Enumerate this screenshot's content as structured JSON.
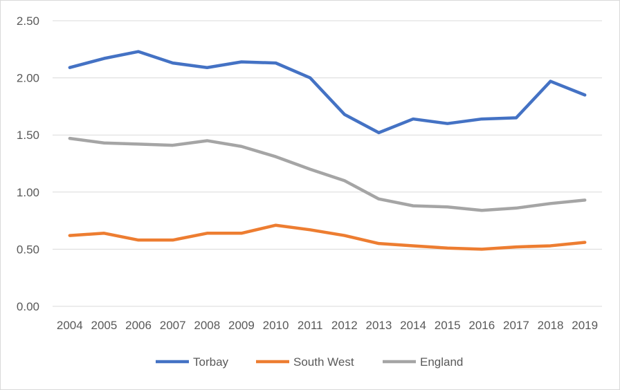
{
  "chart_data": {
    "type": "line",
    "title": "",
    "xlabel": "",
    "ylabel": "",
    "x": [
      "2004",
      "2005",
      "2006",
      "2007",
      "2008",
      "2009",
      "2010",
      "2011",
      "2012",
      "2013",
      "2014",
      "2015",
      "2016",
      "2017",
      "2018",
      "2019"
    ],
    "ylim": [
      0,
      2.5
    ],
    "yticks": [
      "0.00",
      "0.50",
      "1.00",
      "1.50",
      "2.00",
      "2.50"
    ],
    "grid": true,
    "legend": "bottom",
    "series": [
      {
        "name": "Torbay",
        "color": "#4472C4",
        "values": [
          2.09,
          2.17,
          2.23,
          2.13,
          2.09,
          2.14,
          2.13,
          2.0,
          1.68,
          1.52,
          1.64,
          1.6,
          1.64,
          1.65,
          1.97,
          1.85
        ]
      },
      {
        "name": "South West",
        "color": "#ED7D31",
        "values": [
          0.62,
          0.64,
          0.58,
          0.58,
          0.64,
          0.64,
          0.71,
          0.67,
          0.62,
          0.55,
          0.53,
          0.51,
          0.5,
          0.52,
          0.53,
          0.56
        ]
      },
      {
        "name": "England",
        "color": "#A5A5A5",
        "values": [
          1.47,
          1.43,
          1.42,
          1.41,
          1.45,
          1.4,
          1.31,
          1.2,
          1.1,
          0.94,
          0.88,
          0.87,
          0.84,
          0.86,
          0.9,
          0.93
        ]
      }
    ]
  }
}
